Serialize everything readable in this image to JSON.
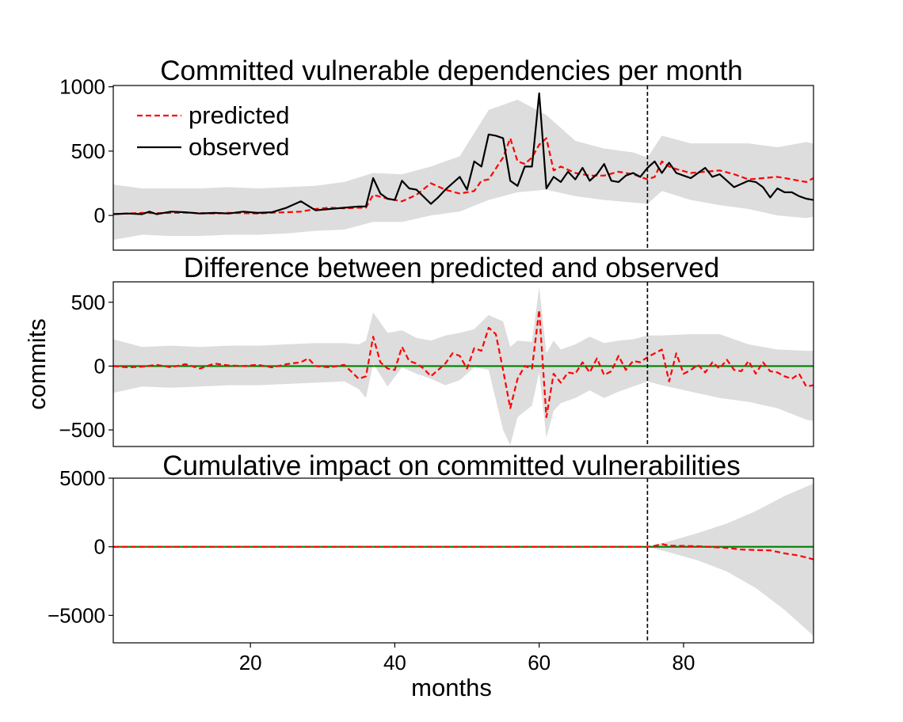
{
  "chart_data": [
    {
      "type": "line",
      "title": "Committed vulnerable dependencies per month",
      "xlabel": "",
      "ylabel": "",
      "xlim": [
        1,
        98
      ],
      "ylim": [
        -270,
        1010
      ],
      "yticks": [
        0,
        500,
        1000
      ],
      "yticklabels": [
        "0",
        "500",
        "1000"
      ],
      "intervention_x": 75,
      "legend": {
        "placement": "top-left",
        "entries": [
          "predicted",
          "observed"
        ]
      },
      "colors": {
        "predicted": "#ff0000",
        "observed": "#000000",
        "band": "#dddddd",
        "intervention": "#000000"
      },
      "series": [
        {
          "name": "predicted",
          "style": "dashed",
          "x": [
            1,
            3,
            5,
            7,
            9,
            11,
            13,
            15,
            17,
            19,
            21,
            23,
            25,
            27,
            29,
            31,
            33,
            35,
            36,
            37,
            39,
            41,
            43,
            45,
            47,
            49,
            51,
            52,
            53,
            55,
            56,
            57,
            58,
            59,
            60,
            61,
            62,
            63,
            65,
            67,
            69,
            71,
            73,
            75,
            76,
            77,
            78,
            79,
            81,
            83,
            85,
            87,
            89,
            91,
            93,
            95,
            97,
            98
          ],
          "values": [
            10,
            15,
            20,
            18,
            20,
            22,
            18,
            15,
            20,
            18,
            15,
            22,
            25,
            30,
            50,
            60,
            55,
            60,
            60,
            160,
            130,
            110,
            160,
            250,
            200,
            170,
            190,
            270,
            280,
            450,
            600,
            420,
            400,
            450,
            550,
            600,
            350,
            380,
            330,
            310,
            310,
            340,
            320,
            280,
            300,
            420,
            380,
            360,
            330,
            340,
            350,
            320,
            280,
            290,
            300,
            280,
            260,
            290
          ]
        },
        {
          "name": "observed",
          "style": "solid",
          "x": [
            1,
            3,
            5,
            6,
            7,
            8,
            9,
            11,
            13,
            15,
            17,
            19,
            21,
            23,
            25,
            27,
            29,
            31,
            33,
            35,
            36,
            37,
            38,
            39,
            40,
            41,
            42,
            43,
            45,
            46,
            47,
            49,
            50,
            51,
            52,
            53,
            54,
            55,
            56,
            57,
            58,
            59,
            60,
            61,
            62,
            63,
            64,
            65,
            66,
            67,
            68,
            69,
            70,
            71,
            72,
            73,
            74,
            75,
            76,
            77,
            78,
            79,
            80,
            81,
            83,
            84,
            85,
            87,
            89,
            90,
            91,
            92,
            93,
            94,
            95,
            96,
            97,
            98
          ],
          "values": [
            10,
            15,
            10,
            30,
            10,
            20,
            30,
            25,
            15,
            20,
            15,
            30,
            20,
            25,
            60,
            110,
            40,
            50,
            60,
            70,
            70,
            290,
            170,
            130,
            120,
            270,
            210,
            200,
            90,
            140,
            200,
            300,
            200,
            420,
            380,
            630,
            620,
            600,
            270,
            230,
            380,
            380,
            950,
            210,
            300,
            260,
            340,
            280,
            370,
            270,
            320,
            400,
            270,
            260,
            310,
            330,
            300,
            370,
            420,
            330,
            410,
            330,
            310,
            290,
            370,
            300,
            320,
            220,
            270,
            260,
            220,
            140,
            210,
            180,
            180,
            150,
            130,
            120
          ]
        }
      ],
      "band_x": [
        1,
        5,
        9,
        13,
        17,
        21,
        25,
        29,
        33,
        37,
        41,
        45,
        49,
        53,
        57,
        61,
        65,
        69,
        73,
        75,
        77,
        81,
        85,
        89,
        93,
        97,
        98
      ],
      "band_upper": [
        240,
        210,
        210,
        210,
        220,
        210,
        220,
        230,
        260,
        330,
        320,
        380,
        460,
        820,
        900,
        780,
        580,
        520,
        490,
        450,
        620,
        560,
        560,
        560,
        530,
        570,
        560
      ],
      "band_lower": [
        -190,
        -150,
        -160,
        -160,
        -150,
        -150,
        -140,
        -120,
        -110,
        -50,
        -50,
        0,
        30,
        120,
        180,
        200,
        150,
        120,
        100,
        90,
        190,
        120,
        80,
        50,
        0,
        -20,
        -10
      ]
    },
    {
      "type": "line",
      "title": "Difference between predicted and observed",
      "xlabel": "",
      "ylabel": "commits",
      "xlim": [
        1,
        98
      ],
      "ylim": [
        -630,
        660
      ],
      "yticks": [
        -500,
        0,
        500
      ],
      "yticklabels": [
        "−500",
        "0",
        "500"
      ],
      "intervention_x": 75,
      "colors": {
        "difference": "#ff0000",
        "zero_line": "#008000",
        "band": "#dddddd"
      },
      "series": [
        {
          "name": "difference",
          "style": "dashed",
          "x": [
            1,
            3,
            5,
            7,
            9,
            11,
            13,
            15,
            17,
            19,
            21,
            23,
            25,
            27,
            28,
            29,
            31,
            33,
            35,
            36,
            37,
            38,
            39,
            40,
            41,
            42,
            43,
            44,
            45,
            46,
            47,
            48,
            49,
            50,
            51,
            52,
            53,
            54,
            55,
            56,
            57,
            58,
            59,
            60,
            61,
            62,
            63,
            64,
            65,
            66,
            67,
            68,
            69,
            70,
            71,
            72,
            73,
            74,
            75,
            76,
            77,
            78,
            79,
            80,
            81,
            82,
            83,
            84,
            85,
            86,
            87,
            88,
            89,
            90,
            91,
            92,
            93,
            94,
            95,
            96,
            97,
            98
          ],
          "values": [
            0,
            -10,
            -5,
            10,
            -10,
            15,
            -20,
            20,
            5,
            0,
            10,
            -10,
            15,
            30,
            60,
            0,
            -10,
            10,
            -100,
            -80,
            230,
            30,
            -20,
            -30,
            150,
            40,
            20,
            -20,
            -80,
            -30,
            20,
            100,
            80,
            -20,
            140,
            120,
            300,
            250,
            -30,
            -330,
            -100,
            0,
            -20,
            440,
            -400,
            -60,
            -130,
            -50,
            -60,
            30,
            -50,
            60,
            -70,
            -40,
            80,
            -30,
            40,
            30,
            70,
            100,
            130,
            -120,
            100,
            -60,
            -30,
            10,
            -50,
            30,
            -20,
            50,
            -30,
            -40,
            40,
            -60,
            30,
            -40,
            -50,
            -80,
            -100,
            -60,
            -160,
            -150
          ]
        }
      ],
      "band_x": [
        1,
        5,
        9,
        13,
        17,
        21,
        25,
        29,
        33,
        35,
        36,
        37,
        39,
        41,
        43,
        45,
        47,
        49,
        51,
        53,
        55,
        56,
        57,
        59,
        60,
        61,
        62,
        63,
        65,
        67,
        69,
        71,
        73,
        75,
        77,
        81,
        85,
        89,
        93,
        97,
        98
      ],
      "band_upper": [
        210,
        150,
        160,
        150,
        160,
        160,
        170,
        180,
        180,
        170,
        200,
        420,
        260,
        280,
        220,
        200,
        240,
        260,
        290,
        400,
        350,
        150,
        200,
        190,
        620,
        100,
        200,
        130,
        170,
        230,
        180,
        200,
        210,
        240,
        240,
        250,
        250,
        170,
        130,
        120,
        120
      ],
      "band_lower": [
        -210,
        -160,
        -170,
        -160,
        -150,
        -150,
        -140,
        -130,
        -120,
        -180,
        -250,
        20,
        -160,
        -10,
        -60,
        -100,
        -150,
        -110,
        -10,
        -30,
        -500,
        -620,
        -400,
        -310,
        -50,
        -560,
        -350,
        -290,
        -250,
        -190,
        -250,
        -200,
        -160,
        -120,
        -150,
        -200,
        -250,
        -280,
        -330,
        -420,
        -430
      ]
    },
    {
      "type": "line",
      "title": "Cumulative impact on committed vulnerabilities",
      "xlabel": "months",
      "ylabel": "",
      "xlim": [
        1,
        98
      ],
      "ylim": [
        -7000,
        5000
      ],
      "yticks": [
        -5000,
        0,
        5000
      ],
      "yticklabels": [
        "−5000",
        "0",
        "5000"
      ],
      "xticks": [
        20,
        40,
        60,
        80
      ],
      "xticklabels": [
        "20",
        "40",
        "60",
        "80"
      ],
      "intervention_x": 75,
      "colors": {
        "cumulative": "#ff0000",
        "zero_line": "#008000",
        "band": "#dddddd"
      },
      "series": [
        {
          "name": "cumulative",
          "style": "dashed",
          "x": [
            1,
            10,
            20,
            30,
            40,
            50,
            60,
            70,
            75,
            76,
            77,
            78,
            80,
            82,
            84,
            86,
            88,
            90,
            92,
            94,
            96,
            98
          ],
          "values": [
            0,
            0,
            0,
            0,
            0,
            0,
            0,
            0,
            0,
            70,
            200,
            80,
            60,
            40,
            -20,
            -80,
            -200,
            -240,
            -260,
            -480,
            -640,
            -920
          ]
        }
      ],
      "band_x": [
        75,
        78,
        82,
        86,
        90,
        94,
        98
      ],
      "band_upper": [
        0,
        400,
        1000,
        1700,
        2600,
        3700,
        4600
      ],
      "band_lower": [
        0,
        -400,
        -1000,
        -1800,
        -3000,
        -4600,
        -6500
      ]
    }
  ]
}
